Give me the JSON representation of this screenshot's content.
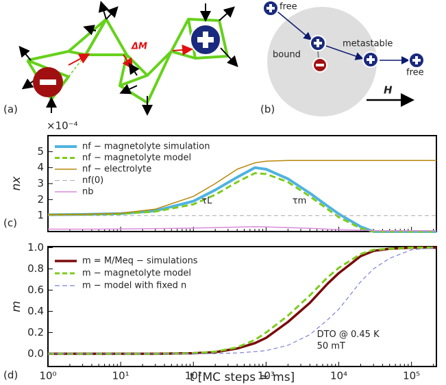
{
  "diagram": {
    "panel_a": "(a)",
    "delta_m": "ΔM",
    "panel_b": "(b)",
    "free_1": "free",
    "bound": "bound",
    "metastable": "metastable",
    "free_2": "free",
    "field": "H"
  },
  "chart_data": [
    {
      "type": "line",
      "panel": "(c)",
      "ylabel": "nx",
      "y_multiplier": "×10⁻⁴",
      "log_x": true,
      "x": [
        1,
        3,
        10,
        30,
        100,
        200,
        400,
        700,
        1000,
        2000,
        4000,
        7000,
        10000,
        20000,
        30000,
        50000,
        100000,
        220000
      ],
      "xlim": [
        1,
        220000
      ],
      "xticks": [
        1,
        10,
        100,
        1000,
        10000,
        100000
      ],
      "ylim": [
        0,
        6
      ],
      "yticks": [
        1,
        2,
        3,
        4,
        5
      ],
      "series": [
        {
          "name": "nf − magnetolyte simulation",
          "color": "#4fb3e0",
          "width": 4,
          "dash": false,
          "values": [
            1.05,
            1.07,
            1.12,
            1.3,
            1.9,
            2.6,
            3.4,
            4.0,
            3.9,
            3.3,
            2.4,
            1.6,
            1.1,
            0.3,
            0,
            0,
            0,
            0
          ]
        },
        {
          "name": "nf − magnetolyte model",
          "color": "#7ccc1c",
          "width": 3,
          "dash": true,
          "values": [
            1.05,
            1.06,
            1.1,
            1.25,
            1.7,
            2.3,
            3.1,
            3.65,
            3.6,
            3.1,
            2.2,
            1.4,
            0.9,
            0.2,
            0,
            0,
            0,
            0
          ]
        },
        {
          "name": "nf − electrolyte",
          "color": "#b8860b",
          "width": 1.5,
          "dash": false,
          "values": [
            1.05,
            1.08,
            1.15,
            1.4,
            2.2,
            3.0,
            3.9,
            4.3,
            4.4,
            4.45,
            4.45,
            4.45,
            4.45,
            4.45,
            4.45,
            4.45,
            4.45,
            4.45
          ]
        },
        {
          "name": "nf(0)",
          "color": "#aaaaaa",
          "width": 1,
          "dash": true,
          "values": [
            1,
            1,
            1,
            1,
            1,
            1,
            1,
            1,
            1,
            1,
            1,
            1,
            1,
            1,
            1,
            1,
            1,
            1
          ]
        },
        {
          "name": "nb",
          "color": "#d98ad9",
          "width": 1.5,
          "dash": false,
          "values": [
            0.15,
            0.15,
            0.16,
            0.18,
            0.22,
            0.25,
            0.28,
            0.3,
            0.29,
            0.25,
            0.2,
            0.15,
            0.12,
            0.08,
            0.06,
            0.05,
            0.05,
            0.05
          ]
        }
      ],
      "annotations": [
        {
          "text": "τL",
          "x": 130,
          "y": 1.9
        },
        {
          "text": "τm",
          "x": 2300,
          "y": 1.9
        }
      ]
    },
    {
      "type": "line",
      "panel": "(d)",
      "ylabel": "m",
      "xlabel": "t [MC steps ≃ ms]",
      "log_x": true,
      "x": [
        1,
        3,
        10,
        30,
        100,
        200,
        400,
        700,
        1000,
        2000,
        4000,
        7000,
        10000,
        20000,
        30000,
        50000,
        100000,
        220000
      ],
      "xlim": [
        1,
        220000
      ],
      "xticks": [
        {
          "value": 1,
          "label": "10⁰"
        },
        {
          "value": 10,
          "label": "10¹"
        },
        {
          "value": 100,
          "label": "10²"
        },
        {
          "value": 1000,
          "label": "10³"
        },
        {
          "value": 10000,
          "label": "10⁴"
        },
        {
          "value": 100000,
          "label": "10⁵"
        }
      ],
      "ylim": [
        -0.12,
        1.01
      ],
      "yticks": [
        {
          "value": 0,
          "label": "0.0"
        },
        0.2,
        0.4,
        0.6,
        0.8,
        {
          "value": 1,
          "label": "1.0"
        }
      ],
      "series": [
        {
          "name": "m = M/Meq − simulations",
          "color": "#7a0a0a",
          "width": 3.5,
          "dash": false,
          "values": [
            0,
            0,
            0,
            0,
            0.005,
            0.015,
            0.05,
            0.1,
            0.15,
            0.3,
            0.48,
            0.66,
            0.76,
            0.92,
            0.97,
            0.99,
            1,
            1
          ]
        },
        {
          "name": "m − magnetolyte model",
          "color": "#7ccc1c",
          "width": 3,
          "dash": true,
          "values": [
            0,
            0,
            0,
            0,
            0.005,
            0.02,
            0.06,
            0.13,
            0.2,
            0.36,
            0.55,
            0.72,
            0.81,
            0.94,
            0.98,
            0.99,
            1,
            1
          ]
        },
        {
          "name": "m − model with fixed n",
          "color": "#7b7fd6",
          "width": 1.2,
          "dash": true,
          "values": [
            0,
            0,
            0,
            0,
            0,
            0.002,
            0.008,
            0.02,
            0.03,
            0.08,
            0.18,
            0.32,
            0.42,
            0.68,
            0.8,
            0.9,
            0.98,
            1
          ]
        }
      ],
      "annotations": [
        {
          "text": "DTO @ 0.45 K",
          "x": 5000,
          "y": 0.18
        },
        {
          "text": "50 mT",
          "x": 5000,
          "y": 0.07
        }
      ]
    }
  ]
}
